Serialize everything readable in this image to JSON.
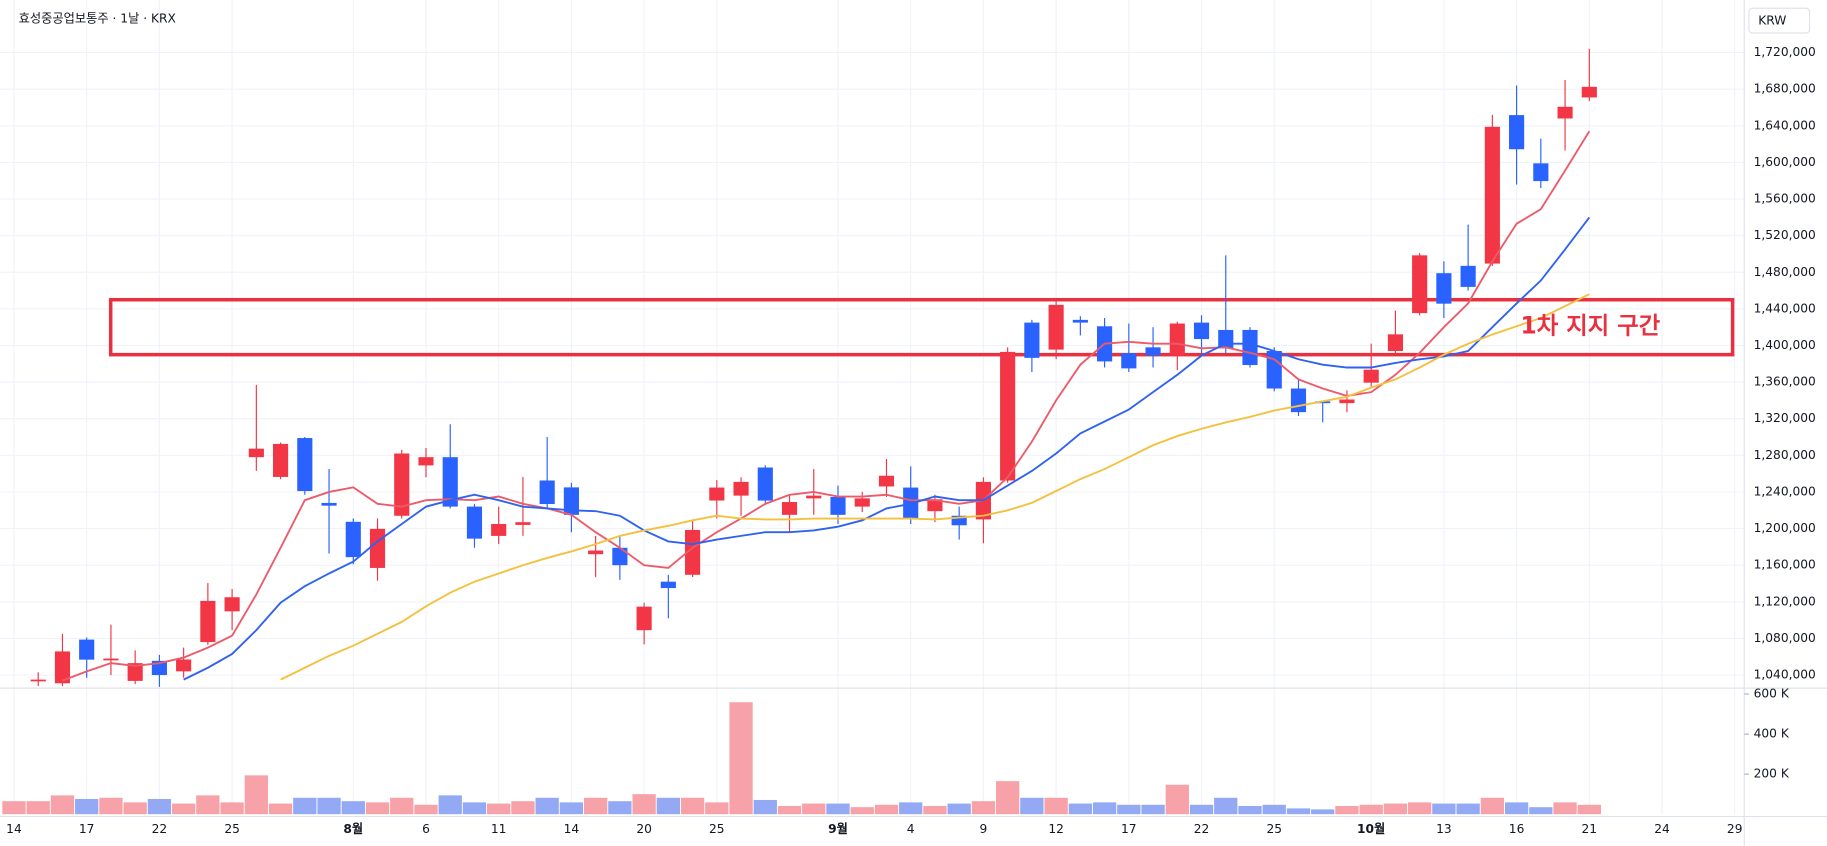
{
  "chart_data": {
    "type": "candlestick",
    "title": "효성중공업보통주 · 1날 · KRX",
    "currency": "KRW",
    "categories": [
      "14",
      null,
      null,
      "17",
      null,
      null,
      "22",
      null,
      null,
      "25",
      null,
      null,
      null,
      null,
      "8월",
      null,
      null,
      "6",
      null,
      null,
      "11",
      null,
      null,
      "14",
      null,
      null,
      "20",
      null,
      null,
      "25",
      null,
      null,
      null,
      null,
      "9월",
      null,
      null,
      "4",
      null,
      null,
      "9",
      null,
      null,
      "12",
      null,
      null,
      "17",
      null,
      null,
      "22",
      null,
      null,
      "25",
      null,
      null,
      null,
      "10월",
      null,
      null,
      "13",
      null,
      null,
      "16",
      null,
      null,
      "21",
      null,
      null,
      "24",
      null,
      null,
      "29"
    ],
    "open": [
      1015000,
      1034000,
      1031000,
      1078700,
      1056000,
      1033600,
      1055500,
      1044000,
      1076000,
      1109600,
      1278000,
      1256400,
      1298900,
      1228000,
      1207400,
      1157000,
      1214000,
      1269000,
      1278000,
      1224000,
      1192000,
      1204000,
      1252500,
      1245000,
      1172000,
      1179000,
      1089000,
      1142000,
      1149500,
      1230600,
      1236000,
      1266700,
      1215000,
      1233000,
      1234500,
      1224000,
      1246000,
      1244800,
      1219000,
      1214000,
      1210000,
      1252500,
      1425000,
      1395500,
      1428000,
      1421000,
      1391600,
      1398000,
      1389000,
      1425000,
      1417000,
      1417000,
      1394000,
      1353000,
      1339000,
      1337000,
      1359400,
      1394000,
      1435400,
      1479000,
      1487000,
      1489500,
      1651700,
      1599000,
      1648000,
      1671000,
      null,
      null,
      null,
      null,
      null,
      null
    ],
    "high": [
      1026000,
      1043000,
      1085000,
      1081000,
      1095000,
      1067000,
      1062000,
      1070000,
      1140500,
      1134000,
      1357000,
      1294000,
      1300000,
      1265000,
      1211000,
      1211000,
      1286000,
      1288000,
      1314000,
      1227000,
      1224000,
      1256400,
      1300000,
      1250000,
      1192000,
      1192000,
      1119000,
      1149500,
      1210000,
      1253000,
      1256000,
      1269000,
      1237000,
      1265000,
      1247000,
      1240000,
      1276000,
      1268000,
      1237000,
      1224000,
      1256000,
      1398000,
      1428000,
      1448000,
      1432000,
      1430000,
      1424000,
      1420000,
      1426000,
      1433000,
      1498500,
      1420000,
      1398000,
      1363000,
      1340000,
      1351000,
      1402000,
      1438000,
      1501000,
      1492000,
      1532000,
      1652000,
      1684000,
      1626000,
      1690000,
      1724000,
      null,
      null,
      null,
      null,
      null,
      null
    ],
    "low": [
      1010000,
      1028000,
      1028000,
      1037000,
      1040000,
      1030000,
      1025000,
      1037000,
      1073000,
      1089000,
      1263000,
      1254000,
      1237000,
      1172700,
      1161000,
      1143000,
      1211000,
      1256000,
      1222000,
      1179000,
      1183000,
      1192000,
      1222000,
      1196000,
      1147000,
      1144000,
      1073500,
      1102000,
      1147000,
      1211000,
      1214000,
      1226000,
      1196000,
      1215000,
      1205000,
      1218000,
      1234500,
      1205000,
      1207000,
      1188000,
      1184000,
      1250000,
      1371000,
      1385000,
      1411000,
      1376000,
      1371000,
      1376000,
      1373000,
      1391600,
      1391600,
      1376000,
      1350000,
      1323000,
      1316000,
      1327000,
      1355000,
      1391600,
      1433000,
      1430000,
      1460000,
      1487000,
      1575800,
      1572000,
      1613000,
      1667000,
      null,
      null,
      null,
      null,
      null,
      null
    ],
    "close": [
      1022000,
      1035000,
      1065800,
      1056800,
      1058000,
      1053000,
      1040000,
      1057000,
      1121000,
      1125000,
      1287300,
      1292500,
      1241000,
      1225000,
      1168800,
      1199700,
      1282000,
      1278000,
      1224000,
      1189000,
      1205000,
      1207000,
      1226800,
      1215000,
      1176000,
      1160000,
      1114700,
      1135000,
      1198500,
      1244800,
      1251000,
      1230600,
      1229000,
      1236000,
      1215000,
      1233000,
      1257700,
      1210000,
      1232000,
      1203600,
      1251000,
      1393000,
      1386500,
      1444400,
      1425000,
      1382600,
      1375000,
      1389000,
      1424000,
      1407000,
      1397000,
      1378700,
      1353000,
      1327200,
      1337000,
      1341000,
      1373600,
      1412200,
      1498500,
      1445700,
      1464000,
      1638900,
      1614400,
      1579600,
      1660800,
      1682600,
      null,
      null,
      null,
      null,
      null,
      null
    ],
    "up_color": "#f23645",
    "down_color": "#2962ff",
    "ylim": [
      1027000,
      1771000
    ],
    "yticks": [
      {
        "value": 1040000,
        "label": "1,040,000"
      },
      {
        "value": 1080000,
        "label": "1,080,000"
      },
      {
        "value": 1120000,
        "label": "1,120,000"
      },
      {
        "value": 1160000,
        "label": "1,160,000"
      },
      {
        "value": 1200000,
        "label": "1,200,000"
      },
      {
        "value": 1240000,
        "label": "1,240,000"
      },
      {
        "value": 1280000,
        "label": "1,280,000"
      },
      {
        "value": 1320000,
        "label": "1,320,000"
      },
      {
        "value": 1360000,
        "label": "1,360,000"
      },
      {
        "value": 1400000,
        "label": "1,400,000"
      },
      {
        "value": 1440000,
        "label": "1,440,000"
      },
      {
        "value": 1480000,
        "label": "1,480,000"
      },
      {
        "value": 1520000,
        "label": "1,520,000"
      },
      {
        "value": 1560000,
        "label": "1,560,000"
      },
      {
        "value": 1600000,
        "label": "1,600,000"
      },
      {
        "value": 1640000,
        "label": "1,640,000"
      },
      {
        "value": 1680000,
        "label": "1,680,000"
      },
      {
        "value": 1720000,
        "label": "1,720,000"
      }
    ],
    "grid": true,
    "moving_averages": [
      {
        "color": "#ec5b69",
        "values": [
          null,
          null,
          1034000,
          1044000,
          1053000,
          1050000,
          1053000,
          1059000,
          1070000,
          1083000,
          1128000,
          1179000,
          1231000,
          1240000,
          1245000,
          1227000,
          1224000,
          1231000,
          1232000,
          1231000,
          1235000,
          1227000,
          1222000,
          1215000,
          1196000,
          1179000,
          1160000,
          1157000,
          1179000,
          1196000,
          1211000,
          1227000,
          1237000,
          1240000,
          1235000,
          1235000,
          1237000,
          1231000,
          1231000,
          1227000,
          1231000,
          1256000,
          1295000,
          1340000,
          1379000,
          1402000,
          1404000,
          1402000,
          1402000,
          1397000,
          1398000,
          1392000,
          1385000,
          1363000,
          1353000,
          1345000,
          1349000,
          1368000,
          1392000,
          1420000,
          1446000,
          1492000,
          1533000,
          1549000,
          1591000,
          1634000,
          null,
          null,
          null,
          null,
          null,
          null
        ]
      },
      {
        "color": "#2f62f0",
        "values": [
          null,
          null,
          null,
          null,
          null,
          null,
          null,
          1035000,
          1048000,
          1063000,
          1089000,
          1119000,
          1137000,
          1151000,
          1164000,
          1186000,
          1205000,
          1224000,
          1231000,
          1237000,
          1231000,
          1224000,
          1222000,
          1220000,
          1219000,
          1214000,
          1198000,
          1186000,
          1183000,
          1188000,
          1192000,
          1196000,
          1196000,
          1198000,
          1202000,
          1209000,
          1222000,
          1227000,
          1235000,
          1231000,
          1231000,
          1247000,
          1263000,
          1282000,
          1304000,
          1317000,
          1330000,
          1349000,
          1368000,
          1389000,
          1402000,
          1402000,
          1394000,
          1385000,
          1379000,
          1376000,
          1376000,
          1381000,
          1385000,
          1388000,
          1394000,
          1420000,
          1446000,
          1471000,
          1505000,
          1540000,
          null,
          null,
          null,
          null,
          null,
          null
        ]
      },
      {
        "color": "#f4c03e",
        "values": [
          null,
          null,
          null,
          null,
          null,
          null,
          null,
          null,
          null,
          null,
          null,
          1035000,
          1048000,
          1061000,
          1072000,
          1085000,
          1098000,
          1115000,
          1130000,
          1142000,
          1151000,
          1160000,
          1168000,
          1175000,
          1183000,
          1192000,
          1198000,
          1203000,
          1209000,
          1214000,
          1211000,
          1210000,
          1210000,
          1211000,
          1211000,
          1211000,
          1211000,
          1211000,
          1210000,
          1212000,
          1214000,
          1220000,
          1228000,
          1241000,
          1254000,
          1265000,
          1278000,
          1291000,
          1301000,
          1309000,
          1316000,
          1322000,
          1329000,
          1334000,
          1339000,
          1344000,
          1354000,
          1363000,
          1376000,
          1390000,
          1402000,
          1412000,
          1421000,
          1430000,
          1443000,
          1456000,
          null,
          null,
          null,
          null,
          null,
          null
        ]
      }
    ],
    "volume": {
      "values": [
        65000,
        65000,
        94000,
        76000,
        82000,
        59000,
        76000,
        53000,
        94000,
        59000,
        194000,
        53000,
        82000,
        82000,
        65000,
        59000,
        82000,
        47000,
        94000,
        59000,
        53000,
        65000,
        82000,
        59000,
        82000,
        65000,
        100000,
        82000,
        82000,
        59000,
        559000,
        71000,
        41000,
        53000,
        53000,
        35000,
        47000,
        59000,
        41000,
        53000,
        65000,
        165000,
        82000,
        82000,
        53000,
        59000,
        47000,
        47000,
        147000,
        47000,
        82000,
        41000,
        47000,
        29000,
        24000,
        41000,
        47000,
        53000,
        59000,
        53000,
        53000,
        82000,
        59000,
        35000,
        59000,
        47000,
        null,
        null,
        null,
        null,
        null,
        null
      ],
      "ylim": [
        0,
        612000
      ],
      "yticks": [
        {
          "value": 200000,
          "label": "200 K"
        },
        {
          "value": 400000,
          "label": "400 K"
        },
        {
          "value": 600000,
          "label": "600 K"
        }
      ],
      "up_color": "#f7a1a8",
      "down_color": "#93a9f3"
    },
    "annotation": {
      "text": "1차 지지 구간",
      "low": 1390000,
      "high": 1450000,
      "color": "#e8303f"
    }
  }
}
